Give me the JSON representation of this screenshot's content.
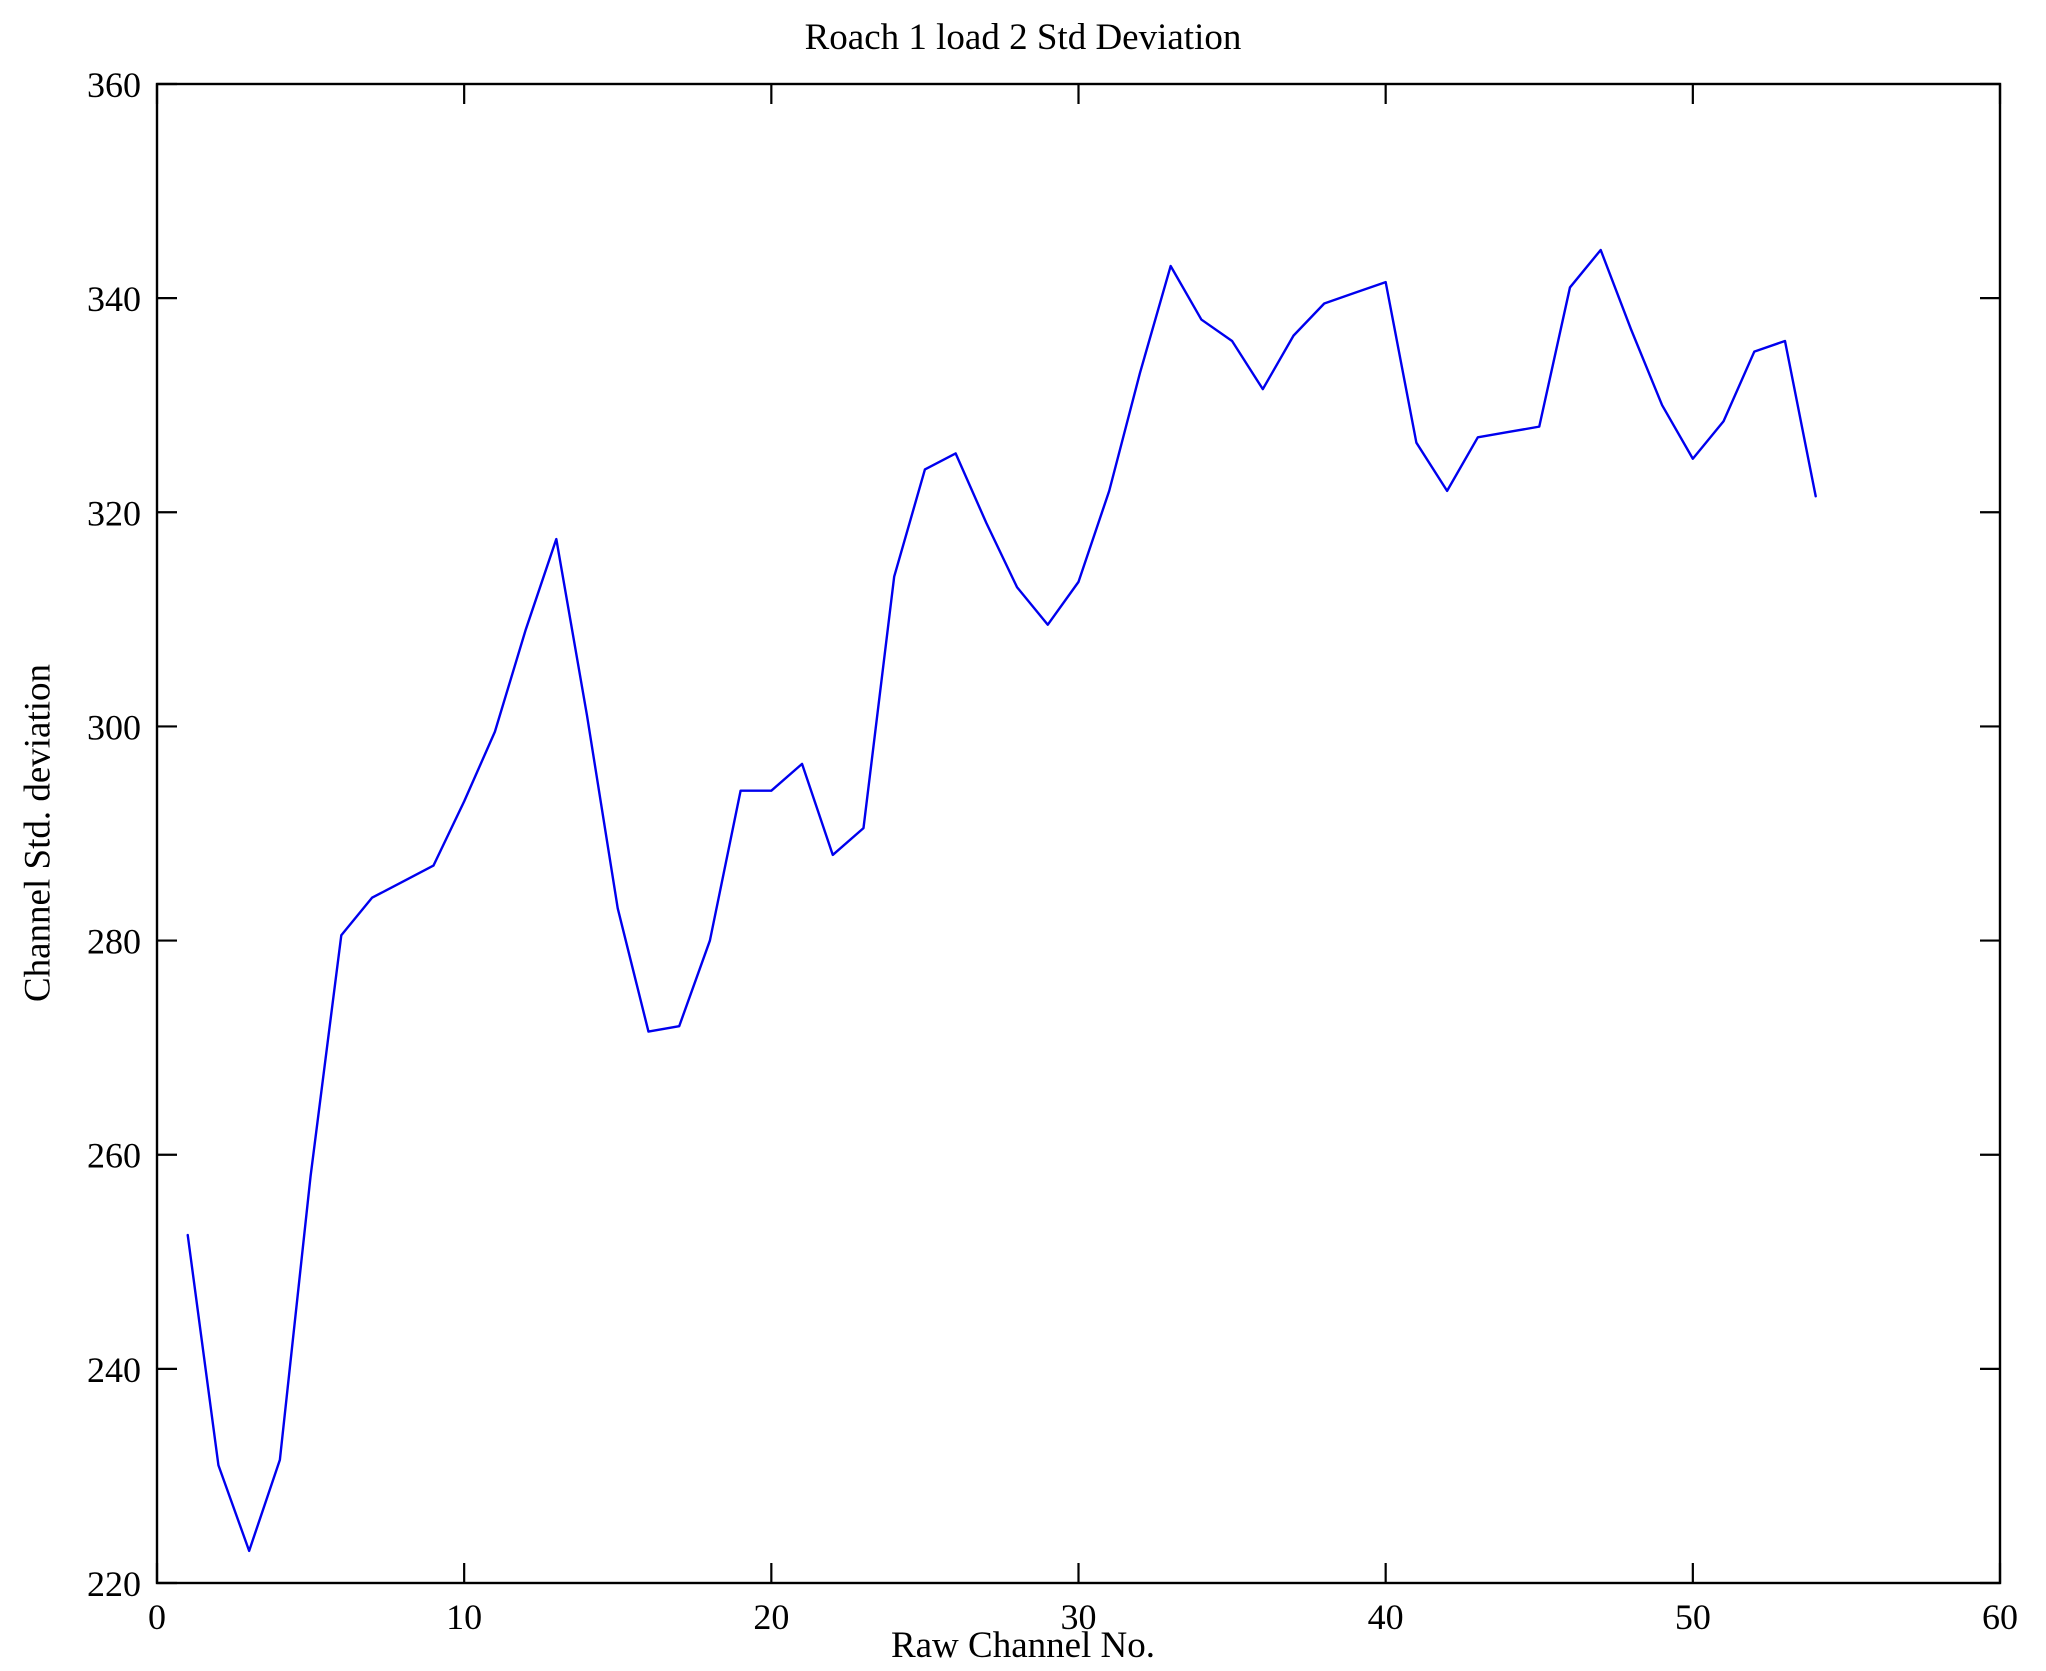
{
  "figure": {
    "background_color": "#ffffff",
    "axes_color": "#000000"
  },
  "chart_data": {
    "type": "line",
    "title": "Roach 1 load 2 Std Deviation",
    "xlabel": "Raw Channel No.",
    "ylabel": "Channel Std. deviation",
    "xlim": [
      0,
      60
    ],
    "ylim": [
      220,
      360
    ],
    "xticks": [
      0,
      10,
      20,
      30,
      40,
      50,
      60
    ],
    "yticks": [
      220,
      240,
      260,
      280,
      300,
      320,
      340,
      360
    ],
    "grid": false,
    "legend": "none",
    "line_color": "#0000ee",
    "x": [
      1,
      2,
      3,
      4,
      5,
      6,
      7,
      8,
      9,
      10,
      11,
      12,
      13,
      14,
      15,
      16,
      17,
      18,
      19,
      20,
      21,
      22,
      23,
      24,
      25,
      26,
      27,
      28,
      29,
      30,
      31,
      32,
      33,
      34,
      35,
      36,
      37,
      38,
      39,
      40,
      41,
      42,
      43,
      44,
      45,
      46,
      47,
      48,
      49,
      50,
      51,
      52,
      53,
      54
    ],
    "values": [
      252.5,
      231,
      223,
      231.5,
      258,
      280.5,
      284,
      285.5,
      287,
      293,
      299.5,
      309,
      317.5,
      301,
      283,
      271.5,
      272,
      280,
      294,
      294,
      296.5,
      288,
      290.5,
      314,
      324,
      325.5,
      319,
      313,
      309.5,
      313.5,
      322,
      333,
      343,
      338,
      336,
      331.5,
      336.5,
      339.5,
      340.5,
      341.5,
      326.5,
      322,
      327,
      327.5,
      328,
      341,
      344.5,
      337,
      330,
      325,
      328.5,
      335,
      336,
      321.5
    ]
  }
}
